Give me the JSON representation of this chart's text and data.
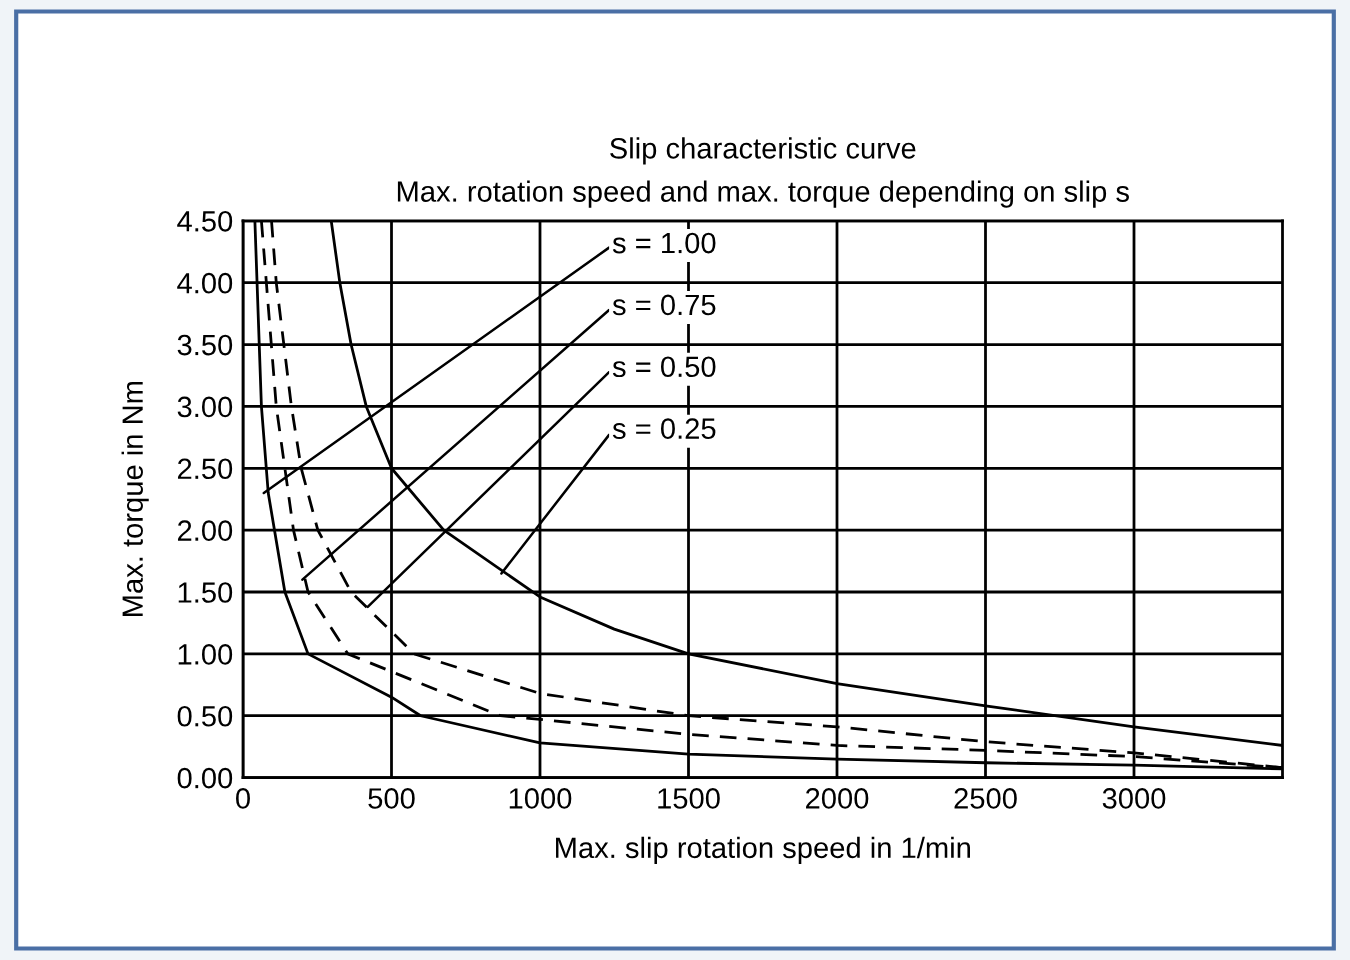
{
  "chart_data": {
    "type": "line",
    "title": "Slip characteristic curve",
    "subtitle": "Max. rotation speed and max. torque depending on slip s",
    "xlabel": "Max. slip rotation speed in 1/min",
    "ylabel": "Max. torque in Nm",
    "xlim": [
      0,
      3500
    ],
    "ylim": [
      0,
      4.5
    ],
    "xticks": [
      0,
      500,
      1000,
      1500,
      2000,
      2500,
      3000
    ],
    "yticks": [
      {
        "value": 0,
        "label": "0.00"
      },
      {
        "value": 0.5,
        "label": "0.50"
      },
      {
        "value": 1,
        "label": "1.00"
      },
      {
        "value": 1.5,
        "label": "1.50"
      },
      {
        "value": 2,
        "label": "2.00"
      },
      {
        "value": 2.5,
        "label": "2.50"
      },
      {
        "value": 3,
        "label": "3.00"
      },
      {
        "value": 3.5,
        "label": "3.50"
      },
      {
        "value": 4,
        "label": "4.00"
      },
      {
        "value": 4.5,
        "label": "4.50"
      }
    ],
    "grid": true,
    "legend": false,
    "series": [
      {
        "color": "#000000",
        "line_style": "solid",
        "x": [
          40,
          62,
          85,
          141,
          219,
          500,
          598,
          1000,
          1500,
          2000,
          2500,
          3000,
          3500
        ],
        "values": [
          4.5,
          3.0,
          2.3,
          1.5,
          1.0,
          0.65,
          0.5,
          0.28,
          0.19,
          0.15,
          0.12,
          0.1,
          0.07
        ]
      },
      {
        "color": "#000000",
        "line_style": "dashed",
        "x": [
          62,
          112,
          170,
          219,
          353,
          866,
          1000,
          1500,
          2000,
          2500,
          3000,
          3500
        ],
        "values": [
          4.5,
          3.0,
          2.0,
          1.5,
          1.0,
          0.5,
          0.47,
          0.35,
          0.26,
          0.22,
          0.17,
          0.08
        ]
      },
      {
        "color": "#000000",
        "line_style": "dashed",
        "x": [
          96,
          112,
          163,
          196,
          252,
          364,
          576,
          1000,
          1500,
          2000,
          2500,
          3000,
          3500
        ],
        "values": [
          4.5,
          4.0,
          3.0,
          2.5,
          2.0,
          1.5,
          1.0,
          0.68,
          0.5,
          0.41,
          0.29,
          0.2,
          0.08
        ]
      },
      {
        "color": "#000000",
        "line_style": "solid",
        "x": [
          297,
          326,
          364,
          415,
          500,
          676,
          1000,
          1250,
          1500,
          2000,
          2500,
          3000,
          3500
        ],
        "values": [
          4.5,
          4.0,
          3.5,
          3.0,
          2.5,
          2.0,
          1.46,
          1.2,
          1.0,
          0.76,
          0.58,
          0.41,
          0.26
        ]
      }
    ],
    "annotations": [
      {
        "text": "s = 1.00",
        "x": 70,
        "y": 2.3
      },
      {
        "text": "s = 0.75",
        "x": 200,
        "y": 1.6
      },
      {
        "text": "s = 0.50",
        "x": 420,
        "y": 1.38
      },
      {
        "text": "s = 0.25",
        "x": 870,
        "y": 1.65
      }
    ]
  }
}
